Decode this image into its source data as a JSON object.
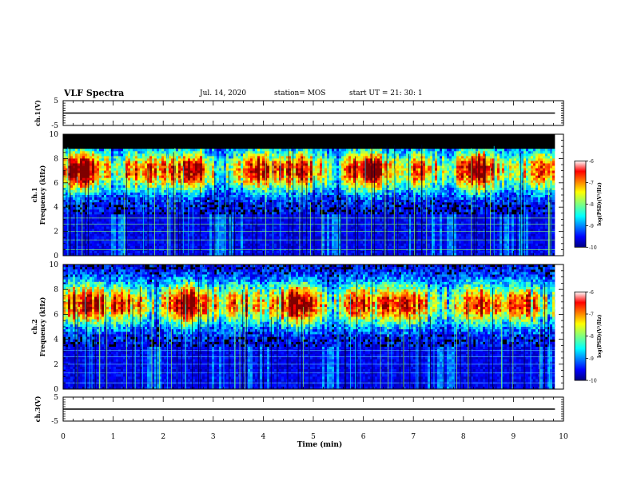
{
  "header": {
    "title": "VLF Spectra",
    "date": "Jul. 14, 2020",
    "station": "station= MOS",
    "start": "start UT =  21: 30: 1"
  },
  "chart_data": [
    {
      "type": "line",
      "name": "ch1-voltage",
      "ylabel": "ch.1(V)",
      "ylim": [
        -5,
        5
      ],
      "yticks": [
        5,
        -5
      ],
      "xlim": [
        0,
        10
      ],
      "x": [
        0,
        9.83
      ],
      "y": [
        0,
        0
      ]
    },
    {
      "type": "heatmap",
      "name": "ch1-spectrogram",
      "ylabel_line1": "ch.1",
      "ylabel_line2": "Frequency (kHz)",
      "ylim": [
        0,
        10
      ],
      "yticks": [
        0,
        2,
        4,
        6,
        8,
        10
      ],
      "xlim": [
        0,
        10
      ],
      "data_extent_min": 9.83,
      "colorbar": {
        "label": "log(PSD)(V²/Hz)",
        "ticks": [
          -6,
          -7,
          -8,
          -9,
          -10
        ],
        "range": [
          -10,
          -6
        ]
      },
      "band_peak_khz": 7.0
    },
    {
      "type": "heatmap",
      "name": "ch2-spectrogram",
      "ylabel_line1": "ch.2",
      "ylabel_line2": "Frequency (kHz)",
      "ylim": [
        0,
        10
      ],
      "yticks": [
        0,
        2,
        4,
        6,
        8,
        10
      ],
      "xlim": [
        0,
        10
      ],
      "data_extent_min": 9.83,
      "colorbar": {
        "label": "log(PSD)(V²/Hz)",
        "ticks": [
          -6,
          -7,
          -8,
          -9,
          -10
        ],
        "range": [
          -10,
          -6
        ]
      },
      "band_peak_khz": 6.8
    },
    {
      "type": "line",
      "name": "ch3-voltage",
      "ylabel": "ch.3(V)",
      "ylim": [
        -5,
        5
      ],
      "yticks": [
        5,
        -5
      ],
      "xlim": [
        0,
        10
      ],
      "x": [
        0,
        9.83
      ],
      "y": [
        0,
        0
      ]
    }
  ],
  "xaxis": {
    "label": "Time (min)",
    "ticks": [
      "0",
      "1",
      "2",
      "3",
      "4",
      "5",
      "6",
      "7",
      "8",
      "9",
      "10"
    ]
  },
  "colors": {
    "jet": [
      "#00007f",
      "#0000ff",
      "#007fff",
      "#00ffff",
      "#7fff7f",
      "#ffff00",
      "#ff7f00",
      "#ff0000",
      "#7f0000"
    ]
  }
}
